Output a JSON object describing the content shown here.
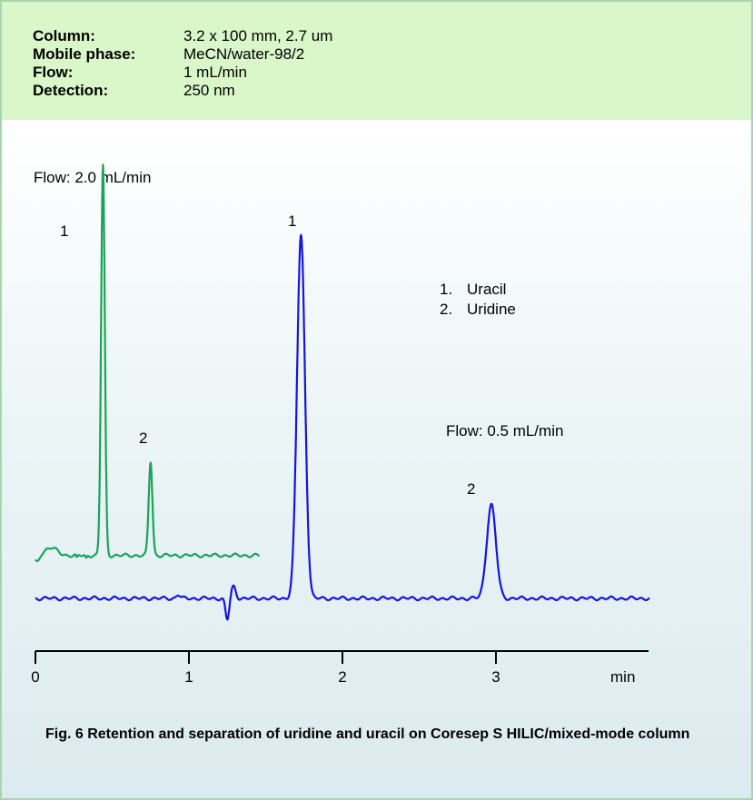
{
  "conditions": [
    {
      "label": "Column:",
      "value": "3.2 x 100 mm, 2.7 um"
    },
    {
      "label": "Mobile phase:",
      "value": "MeCN/water-98/2"
    },
    {
      "label": "Flow:",
      "value": "1 mL/min"
    },
    {
      "label": "Detection:",
      "value": "250 nm"
    }
  ],
  "legend": [
    "1.",
    "Uracil",
    "2.",
    "Uridine"
  ],
  "caption": "Fig. 6 Retention and separation of uridine and uracil on Coresep S HILIC/mixed-mode column",
  "chart_data": {
    "type": "line",
    "xlabel": "min",
    "ylabel": "",
    "xlim": [
      0,
      4
    ],
    "xticks": [
      0,
      1,
      2,
      3
    ],
    "grid": false,
    "colors": {
      "Flow: 2.0 mL/min": "#1aa35a",
      "Flow: 0.5 mL/min": "#1414e0",
      "info_panel": "#d9f7c9"
    },
    "series": [
      {
        "name": "Flow: 2.0 mL/min",
        "baseline": 0.11,
        "x_range": [
          0,
          1.46
        ],
        "peaks": [
          {
            "label": "1",
            "compound": "Uracil",
            "x": 0.44,
            "height": 1.0
          },
          {
            "label": "2",
            "compound": "Uridine",
            "x": 0.75,
            "height": 0.24
          }
        ]
      },
      {
        "name": "Flow: 0.5 mL/min",
        "baseline": 0.0,
        "x_range": [
          0,
          4
        ],
        "peaks": [
          {
            "label": "1",
            "compound": "Uracil",
            "x": 1.73,
            "height": 0.93
          },
          {
            "label": "2",
            "compound": "Uridine",
            "x": 2.97,
            "height": 0.24
          }
        ]
      }
    ]
  }
}
